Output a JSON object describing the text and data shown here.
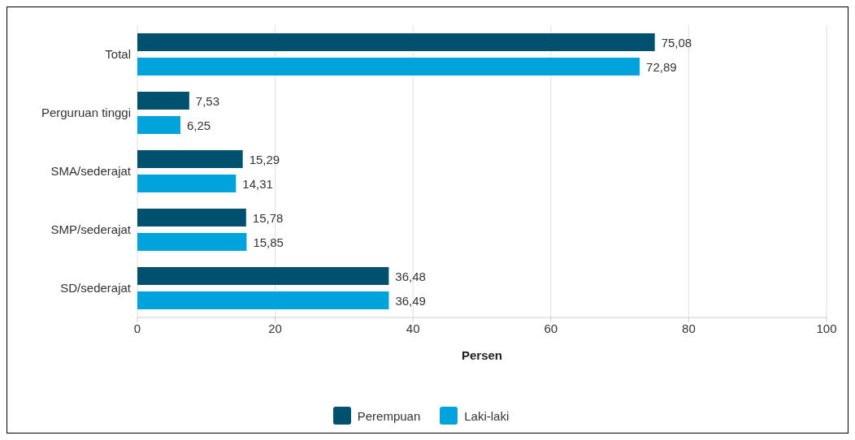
{
  "chart_data": {
    "type": "bar",
    "orientation": "horizontal",
    "xlabel": "Persen",
    "categories": [
      "Total",
      "Perguruan tinggi",
      "SMA/sederajat",
      "SMP/sederajat",
      "SD/sederajat"
    ],
    "series": [
      {
        "name": "Perempuan",
        "color": "#00516e",
        "values": [
          75.08,
          7.53,
          15.29,
          15.78,
          36.48
        ],
        "value_labels": [
          "75,08",
          "7,53",
          "15,29",
          "15,78",
          "36,48"
        ]
      },
      {
        "name": "Laki-laki",
        "color": "#00a3db",
        "values": [
          72.89,
          6.25,
          14.31,
          15.85,
          36.49
        ],
        "value_labels": [
          "72,89",
          "6,25",
          "14,31",
          "15,85",
          "36,49"
        ]
      }
    ],
    "xlim": [
      0,
      100
    ],
    "xticks": [
      0,
      20,
      40,
      60,
      80,
      100
    ],
    "grid": "x",
    "legend": "bottom"
  }
}
